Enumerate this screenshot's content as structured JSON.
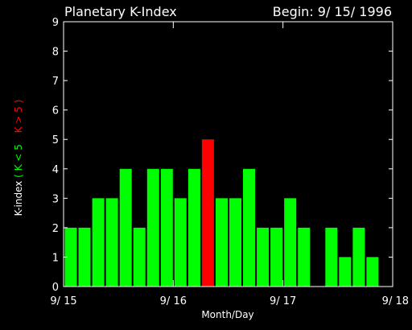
{
  "chart_data": {
    "type": "bar",
    "title": "Planetary K-Index",
    "begin_label": "Begin: 9/ 15/ 1996",
    "xlabel": "Month/Day",
    "ylabel_prefix": "K-index",
    "ylabel_green": "K < 5",
    "ylabel_red": "K > 5",
    "x_tick_labels": [
      "9/ 15",
      "9/ 16",
      "9/ 17",
      "9/ 18"
    ],
    "y_tick_labels": [
      "0",
      "1",
      "2",
      "3",
      "4",
      "5",
      "6",
      "7",
      "8",
      "9"
    ],
    "ylim": [
      0,
      9
    ],
    "x_range_slots": 24,
    "values": [
      2,
      2,
      3,
      3,
      4,
      2,
      4,
      4,
      3,
      4,
      5,
      3,
      3,
      4,
      2,
      2,
      3,
      2,
      null,
      2,
      1,
      2,
      1,
      null
    ],
    "colors": {
      "low": "#00ff00",
      "high": "#ff0000",
      "axis": "#ffffff",
      "background": "#000000"
    },
    "high_threshold": 5
  }
}
